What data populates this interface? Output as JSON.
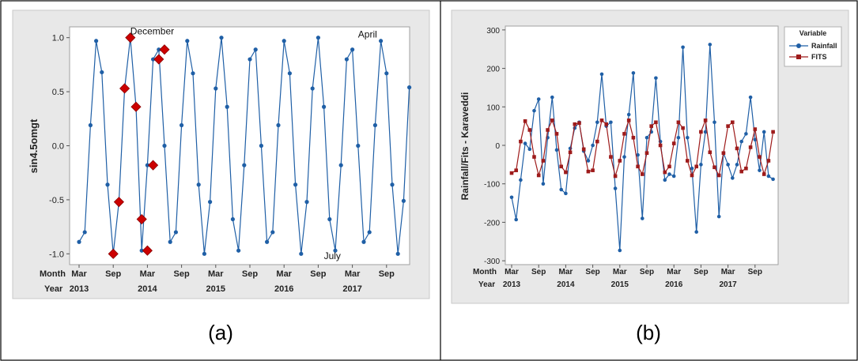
{
  "panels": [
    {
      "caption": "(a)"
    },
    {
      "caption": "(b)"
    }
  ],
  "chart_data": [
    {
      "type": "line",
      "title": "",
      "xlabel": "",
      "ylabel": "sin4.5omgt",
      "ylim": [
        -1.1,
        1.1
      ],
      "yticks": [
        1.0,
        0.5,
        0.0,
        -0.5,
        -1.0
      ],
      "ytick_labels": [
        "1.0",
        "0.5",
        "0.0",
        "-0.5",
        "-1.0"
      ],
      "x_row_labels": [
        "Month",
        "Year"
      ],
      "x_month_ticks": [
        {
          "index": 0,
          "label": "Mar"
        },
        {
          "index": 6,
          "label": "Sep"
        },
        {
          "index": 12,
          "label": "Mar"
        },
        {
          "index": 18,
          "label": "Sep"
        },
        {
          "index": 24,
          "label": "Mar"
        },
        {
          "index": 30,
          "label": "Sep"
        },
        {
          "index": 36,
          "label": "Mar"
        },
        {
          "index": 42,
          "label": "Sep"
        },
        {
          "index": 48,
          "label": "Mar"
        },
        {
          "index": 54,
          "label": "Sep"
        }
      ],
      "x_year_ticks": [
        {
          "index": 0,
          "label": "2013"
        },
        {
          "index": 12,
          "label": "2014"
        },
        {
          "index": 24,
          "label": "2015"
        },
        {
          "index": 36,
          "label": "2016"
        },
        {
          "index": 48,
          "label": "2017"
        }
      ],
      "series": [
        {
          "values": [
            -0.89,
            -0.8,
            0.19,
            0.97,
            0.68,
            -0.36,
            -1.0,
            -0.52,
            0.53,
            1.0,
            0.36,
            -0.97,
            -0.18,
            0.8,
            0.89,
            0.0,
            -0.89,
            -0.8,
            0.19,
            0.97,
            0.67,
            -0.36,
            -1.0,
            -0.52,
            0.53,
            1.0,
            0.36,
            -0.68,
            -0.97,
            -0.18,
            0.8,
            0.89,
            0.0,
            -0.89,
            -0.8,
            0.19,
            0.97,
            0.67,
            -0.36,
            -1.0,
            -0.52,
            0.53,
            1.0,
            0.36,
            -0.68,
            -0.97,
            -0.18,
            0.8,
            0.89,
            0.0,
            -0.89,
            -0.8,
            0.19,
            0.97,
            0.67,
            -0.36,
            -1.0,
            -0.51,
            0.54
          ]
        }
      ],
      "highlight_points": [
        {
          "index": 6,
          "value": -1.0
        },
        {
          "index": 7,
          "value": -0.52
        },
        {
          "index": 8,
          "value": 0.53
        },
        {
          "index": 9,
          "value": 1.0
        },
        {
          "index": 10,
          "value": 0.36
        },
        {
          "index": 11,
          "value": -0.68
        },
        {
          "index": 12,
          "value": -0.97
        },
        {
          "index": 13,
          "value": -0.18
        },
        {
          "index": 14,
          "value": 0.8
        },
        {
          "index": 15,
          "value": 0.89
        }
      ],
      "annotations": [
        {
          "text": "December",
          "index": 9,
          "value": 1.03
        },
        {
          "text": "April",
          "index": 49,
          "value": 1.0
        },
        {
          "text": "July",
          "index": 43,
          "value": -1.05
        }
      ],
      "colors": {
        "line": "#1f5fa6",
        "marker": "#1f5fa6",
        "highlight": "#cc0000",
        "plot_bg": "#ffffff",
        "panel_bg": "#e8e8e8"
      }
    },
    {
      "type": "line",
      "title": "",
      "xlabel": "",
      "ylabel": "Rainfall/Fits - Karaveddi",
      "ylim": [
        -310,
        310
      ],
      "yticks": [
        300,
        200,
        100,
        0,
        -100,
        -200,
        -300
      ],
      "ytick_labels": [
        "300",
        "200",
        "100",
        "0",
        "-100",
        "-200",
        "-300"
      ],
      "x_row_labels": [
        "Month",
        "Year"
      ],
      "x_month_ticks": [
        {
          "index": 0,
          "label": "Mar"
        },
        {
          "index": 6,
          "label": "Sep"
        },
        {
          "index": 12,
          "label": "Mar"
        },
        {
          "index": 18,
          "label": "Sep"
        },
        {
          "index": 24,
          "label": "Mar"
        },
        {
          "index": 30,
          "label": "Sep"
        },
        {
          "index": 36,
          "label": "Mar"
        },
        {
          "index": 42,
          "label": "Sep"
        },
        {
          "index": 48,
          "label": "Mar"
        },
        {
          "index": 54,
          "label": "Sep"
        }
      ],
      "x_year_ticks": [
        {
          "index": 0,
          "label": "2013"
        },
        {
          "index": 12,
          "label": "2014"
        },
        {
          "index": 24,
          "label": "2015"
        },
        {
          "index": 36,
          "label": "2016"
        },
        {
          "index": 48,
          "label": "2017"
        }
      ],
      "legend": {
        "title": "Variable",
        "position": "top-right"
      },
      "series": [
        {
          "name": "Rainfall",
          "color": "#1f5fa6",
          "marker": "circle",
          "values": [
            -135,
            -193,
            -90,
            5,
            -10,
            90,
            120,
            -100,
            20,
            125,
            -12,
            -115,
            -125,
            -8,
            45,
            60,
            -15,
            -40,
            0,
            60,
            185,
            50,
            60,
            -112,
            -273,
            -30,
            80,
            188,
            -25,
            -190,
            20,
            35,
            175,
            10,
            -90,
            -75,
            -80,
            20,
            255,
            20,
            -60,
            -225,
            -50,
            35,
            262,
            60,
            -185,
            -20,
            -50,
            -85,
            -50,
            10,
            30,
            125,
            15,
            -65,
            35,
            -80,
            -88
          ]
        },
        {
          "name": "FITS",
          "color": "#9e1b1b",
          "marker": "square",
          "values": [
            -72,
            -65,
            10,
            63,
            40,
            -30,
            -78,
            -40,
            40,
            65,
            30,
            -55,
            -70,
            -18,
            55,
            58,
            -10,
            -68,
            -65,
            10,
            65,
            55,
            -30,
            -80,
            -40,
            30,
            65,
            20,
            -55,
            -75,
            -20,
            50,
            60,
            0,
            -70,
            -55,
            5,
            60,
            45,
            -40,
            -78,
            -55,
            35,
            65,
            -18,
            -57,
            -78,
            -20,
            50,
            60,
            -8,
            -68,
            -60,
            -5,
            42,
            -30,
            -75,
            -40,
            35
          ]
        }
      ],
      "colors": {
        "plot_bg": "#ffffff",
        "panel_bg": "#e8e8e8"
      }
    }
  ]
}
